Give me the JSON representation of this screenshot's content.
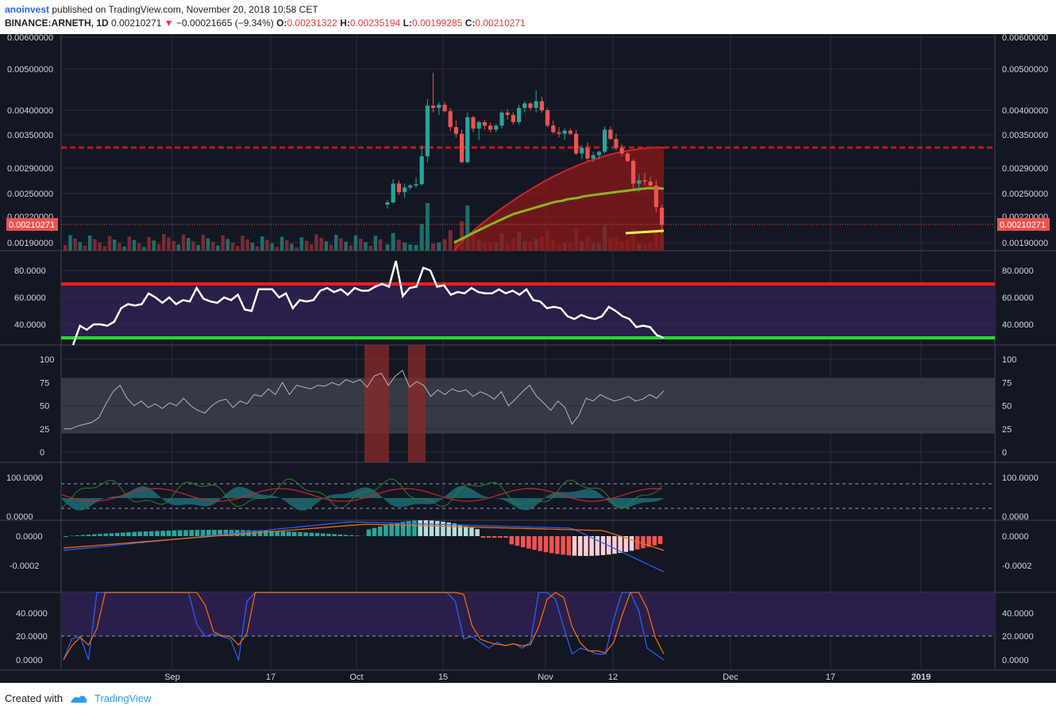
{
  "header": {
    "author": "anoinvest",
    "published": "published on TradingView.com, November 20, 2018 10:58 CET",
    "symbol": "BINANCE:ARNETH, 1D",
    "last": "0.00210271",
    "change": "−0.00021665 (−9.34%)",
    "o_label": "O:",
    "o": "0.00231322",
    "h_label": "H:",
    "h": "0.00235194",
    "l_label": "L:",
    "l": "0.00199285",
    "c_label": "C:",
    "c": "0.00210271"
  },
  "footer": {
    "created_with": "Created with",
    "brand": "TradingView"
  },
  "colors": {
    "background": "#131722",
    "grid": "#2a2e39",
    "up": "#26a69a",
    "down": "#ef5350",
    "rsi_band": "#2a1f4a",
    "red_line": "#ff1a1a",
    "green_line": "#22dd22",
    "ema": "#8bb51d",
    "resistance": "#b71c1c",
    "yellow": "#f5f542"
  },
  "chart_data": {
    "type": "candlestick",
    "x_ticks": [
      "Sep",
      "17",
      "Oct",
      "15",
      "Nov",
      "12",
      "Dec",
      "17",
      "2019"
    ],
    "price_panel": {
      "y_ticks": [
        "0.00600000",
        "0.00500000",
        "0.00400000",
        "0.00350000",
        "0.00290000",
        "0.00250000",
        "0.00220000",
        "0.00190000"
      ],
      "last_price_label": "0.00210271",
      "resistance_level": 0.00327,
      "candles": [
        [
          0.00235,
          0.00241,
          0.0023,
          0.00238
        ],
        [
          0.00238,
          0.00272,
          0.00236,
          0.00265
        ],
        [
          0.00265,
          0.0027,
          0.00248,
          0.00252
        ],
        [
          0.00252,
          0.00265,
          0.00244,
          0.00259
        ],
        [
          0.00259,
          0.00264,
          0.00256,
          0.00262
        ],
        [
          0.00262,
          0.00275,
          0.00258,
          0.00264
        ],
        [
          0.00264,
          0.0033,
          0.00262,
          0.0031
        ],
        [
          0.0031,
          0.00425,
          0.003,
          0.0041
        ],
        [
          0.0041,
          0.0049,
          0.00395,
          0.00405
        ],
        [
          0.00405,
          0.00418,
          0.0039,
          0.00412
        ],
        [
          0.00412,
          0.00418,
          0.00395,
          0.00398
        ],
        [
          0.00398,
          0.00405,
          0.00358,
          0.00365
        ],
        [
          0.00365,
          0.00378,
          0.00345,
          0.00352
        ],
        [
          0.00352,
          0.0036,
          0.00298,
          0.003
        ],
        [
          0.003,
          0.00395,
          0.00298,
          0.00385
        ],
        [
          0.00385,
          0.00388,
          0.00355,
          0.00362
        ],
        [
          0.00362,
          0.00378,
          0.0034,
          0.00375
        ],
        [
          0.00375,
          0.0038,
          0.0036,
          0.00368
        ],
        [
          0.00368,
          0.00374,
          0.00355,
          0.0036
        ],
        [
          0.0036,
          0.00372,
          0.00355,
          0.00368
        ],
        [
          0.00368,
          0.00398,
          0.00362,
          0.00395
        ],
        [
          0.00395,
          0.00402,
          0.0038,
          0.0039
        ],
        [
          0.0039,
          0.00396,
          0.0037,
          0.00375
        ],
        [
          0.00375,
          0.00412,
          0.0037,
          0.00405
        ],
        [
          0.00405,
          0.0042,
          0.00395,
          0.00415
        ],
        [
          0.00415,
          0.00418,
          0.004,
          0.00405
        ],
        [
          0.00405,
          0.00445,
          0.00395,
          0.0042
        ],
        [
          0.0042,
          0.0043,
          0.00395,
          0.004
        ],
        [
          0.004,
          0.00405,
          0.00365,
          0.00368
        ],
        [
          0.00368,
          0.00378,
          0.00352,
          0.00355
        ],
        [
          0.00355,
          0.00365,
          0.00345,
          0.00352
        ],
        [
          0.00352,
          0.00362,
          0.0034,
          0.00358
        ],
        [
          0.00358,
          0.00362,
          0.0035,
          0.00352
        ],
        [
          0.00352,
          0.0036,
          0.00312,
          0.00315
        ],
        [
          0.00315,
          0.0033,
          0.00305,
          0.00325
        ],
        [
          0.00325,
          0.00335,
          0.00302,
          0.00306
        ],
        [
          0.00306,
          0.00318,
          0.003,
          0.00312
        ],
        [
          0.00312,
          0.0032,
          0.00305,
          0.00318
        ],
        [
          0.00318,
          0.00366,
          0.00315,
          0.0036
        ],
        [
          0.0036,
          0.00366,
          0.0034,
          0.00342
        ],
        [
          0.00342,
          0.00352,
          0.0032,
          0.00325
        ],
        [
          0.00325,
          0.00332,
          0.0031,
          0.00315
        ],
        [
          0.00315,
          0.00318,
          0.003,
          0.00302
        ],
        [
          0.00302,
          0.00305,
          0.00255,
          0.00265
        ],
        [
          0.00265,
          0.0028,
          0.00252,
          0.0027
        ],
        [
          0.0027,
          0.00282,
          0.00262,
          0.00268
        ],
        [
          0.00268,
          0.00276,
          0.00258,
          0.00262
        ],
        [
          0.00262,
          0.0027,
          0.00225,
          0.00232
        ],
        [
          0.00231,
          0.00235,
          0.00199,
          0.0021
        ]
      ],
      "ema_line": [
        0.0019,
        0.00193,
        0.00196,
        0.00199,
        0.00202,
        0.00205,
        0.00208,
        0.00211,
        0.00214,
        0.00217,
        0.0022,
        0.00223,
        0.00225,
        0.00227,
        0.00229,
        0.00231,
        0.00233,
        0.00235,
        0.00237,
        0.00239,
        0.0024,
        0.00242,
        0.00243,
        0.00244,
        0.00246,
        0.00247,
        0.00248,
        0.00249,
        0.0025,
        0.00251,
        0.00252,
        0.00253,
        0.00254,
        0.00255,
        0.00256,
        0.00257,
        0.00258,
        0.00258,
        0.00258,
        0.00257
      ],
      "yellow_segment": [
        0.00205,
        0.00207
      ]
    },
    "rsi_panel": {
      "y_ticks": [
        "80.0000",
        "60.0000",
        "40.0000"
      ],
      "upper": 70,
      "lower": 30,
      "values": [
        20,
        39,
        36,
        40,
        40,
        39,
        42,
        52,
        55,
        54,
        55,
        63,
        60,
        56,
        60,
        55,
        58,
        57,
        67,
        59,
        57,
        56,
        60,
        58,
        62,
        51,
        50,
        66,
        66,
        66,
        60,
        63,
        52,
        58,
        57,
        58,
        65,
        67,
        64,
        66,
        62,
        67,
        65,
        65,
        68,
        70,
        68,
        87,
        61,
        67,
        68,
        82,
        80,
        68,
        69,
        62,
        64,
        63,
        67,
        64,
        63,
        63,
        66,
        63,
        65,
        62,
        66,
        58,
        57,
        52,
        53,
        52,
        46,
        44,
        47,
        45,
        44,
        46,
        53,
        50,
        46,
        44,
        38,
        39,
        38,
        32,
        30
      ]
    },
    "stoch_panel": {
      "y_ticks": [
        "100",
        "75",
        "50",
        "25",
        "0"
      ],
      "values": [
        25,
        25,
        28,
        30,
        32,
        37,
        52,
        65,
        72,
        58,
        50,
        55,
        48,
        52,
        47,
        53,
        50,
        58,
        50,
        45,
        42,
        50,
        55,
        57,
        48,
        55,
        52,
        62,
        60,
        68,
        62,
        75,
        62,
        72,
        70,
        68,
        72,
        71,
        75,
        72,
        78,
        75,
        78,
        70,
        82,
        85,
        72,
        82,
        88,
        70,
        76,
        72,
        60,
        67,
        62,
        68,
        65,
        67,
        60,
        65,
        62,
        57,
        65,
        50,
        57,
        65,
        72,
        60,
        53,
        45,
        55,
        48,
        30,
        40,
        58,
        55,
        62,
        58,
        55,
        57,
        60,
        55,
        57,
        62,
        58,
        66
      ],
      "highlights": [
        [
          459,
          490
        ],
        [
          514,
          536
        ]
      ]
    },
    "osc_panel": {
      "y_ticks": [
        "100.0000",
        "0.0000"
      ]
    },
    "macd_panel": {
      "y_ticks": [
        "0.0000",
        "-0.0002"
      ]
    },
    "stochrsi_panel": {
      "y_ticks": [
        "40.0000",
        "20.0000",
        "0.0000"
      ]
    }
  }
}
